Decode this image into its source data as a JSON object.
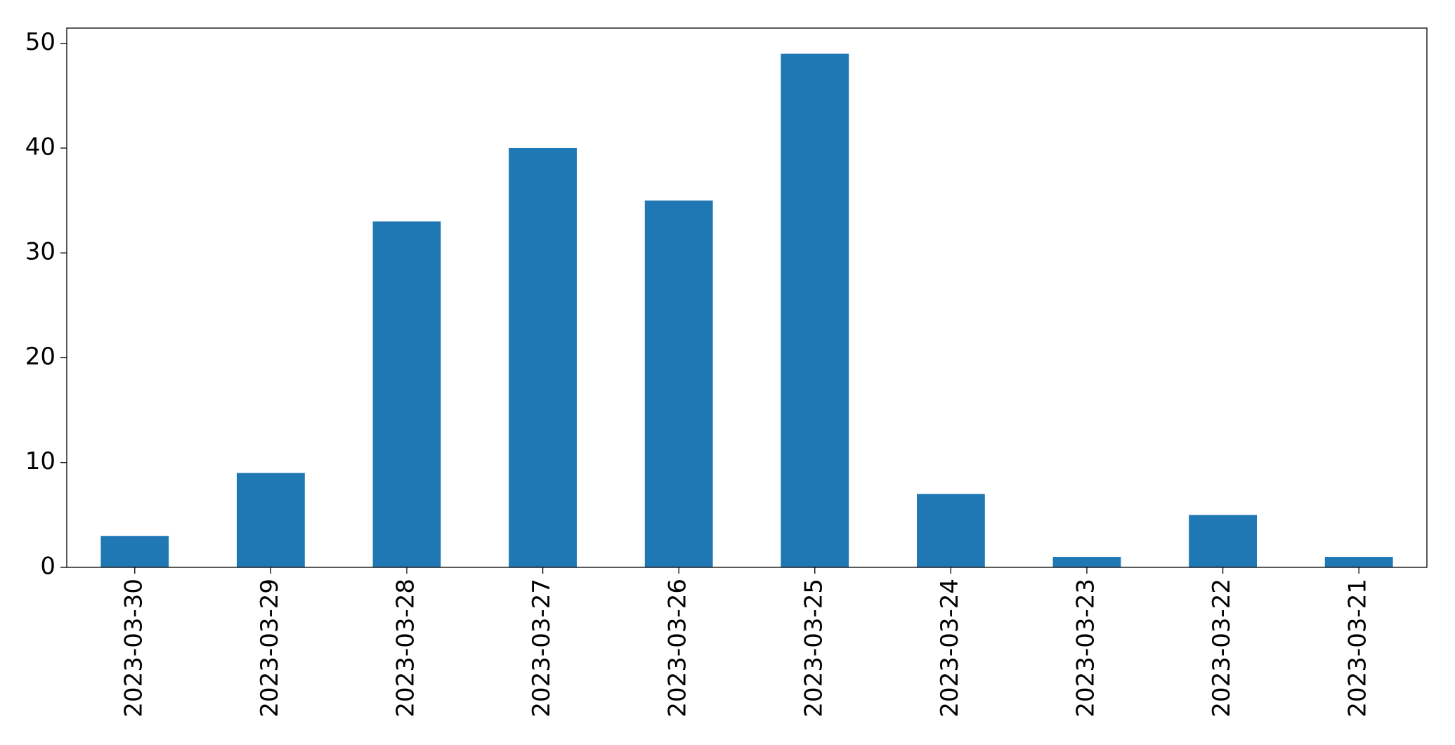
{
  "chart_data": {
    "type": "bar",
    "categories": [
      "2023-03-30",
      "2023-03-29",
      "2023-03-28",
      "2023-03-27",
      "2023-03-26",
      "2023-03-25",
      "2023-03-24",
      "2023-03-23",
      "2023-03-22",
      "2023-03-21"
    ],
    "values": [
      3,
      9,
      33,
      40,
      35,
      49,
      7,
      1,
      5,
      1
    ],
    "color": "#1f77b4",
    "ylim": [
      0,
      51.45
    ],
    "yticks": [
      0,
      10,
      20,
      30,
      40,
      50
    ],
    "grid": false
  }
}
